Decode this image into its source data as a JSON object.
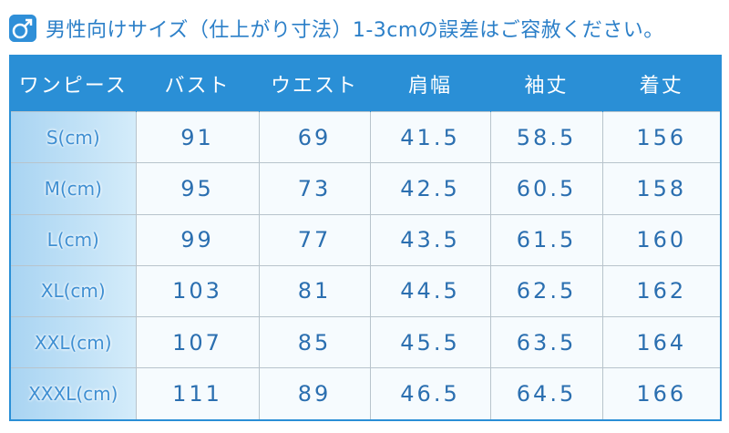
{
  "header": {
    "title": "男性向けサイズ（仕上がり寸法）1-3cmの誤差はご容赦ください。"
  },
  "table": {
    "columns": [
      "ワンピース",
      "バスト",
      "ウエスト",
      "肩幅",
      "袖丈",
      "着丈"
    ],
    "rows": [
      [
        "S(cm)",
        "91",
        "69",
        "41.5",
        "58.5",
        "156"
      ],
      [
        "M(cm)",
        "95",
        "73",
        "42.5",
        "60.5",
        "158"
      ],
      [
        "L(cm)",
        "99",
        "77",
        "43.5",
        "61.5",
        "160"
      ],
      [
        "XL(cm)",
        "103",
        "81",
        "44.5",
        "62.5",
        "162"
      ],
      [
        "XXL(cm)",
        "107",
        "85",
        "45.5",
        "63.5",
        "164"
      ],
      [
        "XXXL(cm)",
        "111",
        "89",
        "46.5",
        "64.5",
        "166"
      ]
    ]
  }
}
